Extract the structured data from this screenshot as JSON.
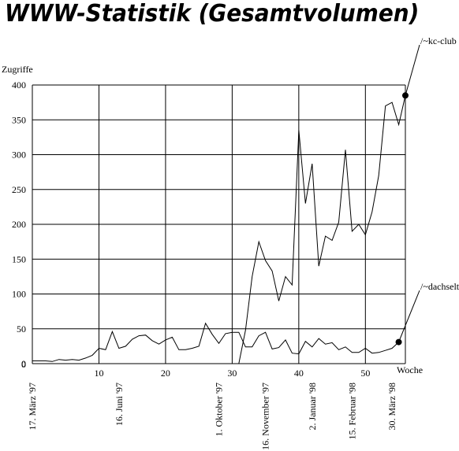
{
  "chart_data": {
    "type": "line",
    "title": "WWW-Statistik (Gesamtvolumen)",
    "ylabel": "Zugriffe",
    "xlabel": "Woche",
    "ylim": [
      0,
      400
    ],
    "xlim": [
      0,
      56
    ],
    "yticks": [
      0,
      50,
      100,
      150,
      200,
      250,
      300,
      350,
      400
    ],
    "xticks": [
      10,
      20,
      30,
      40,
      50
    ],
    "xgridlines": [
      10,
      20,
      30,
      40,
      50
    ],
    "grid": true,
    "date_labels": [
      {
        "x": 0,
        "label": "17. März '97"
      },
      {
        "x": 13,
        "label": "16. Juni '97"
      },
      {
        "x": 28,
        "label": "1. Oktober '97"
      },
      {
        "x": 35,
        "label": "16. November '97"
      },
      {
        "x": 42,
        "label": "2. Januar '98"
      },
      {
        "x": 48,
        "label": "15. Februar '98"
      },
      {
        "x": 54,
        "label": "30. März '98"
      }
    ],
    "series": [
      {
        "name": "/~kc-club",
        "color": "#000000",
        "start_x": 31,
        "values": [
          0,
          48,
          125,
          175,
          148,
          133,
          90,
          125,
          113,
          335,
          230,
          287,
          140,
          183,
          177,
          203,
          307,
          190,
          200,
          185,
          218,
          270,
          370,
          375,
          343,
          385
        ],
        "end_marker": true
      },
      {
        "name": "/~dachselt",
        "color": "#000000",
        "start_x": 0,
        "values": [
          4,
          4,
          4,
          3,
          6,
          5,
          6,
          5,
          8,
          12,
          22,
          20,
          46,
          22,
          25,
          35,
          40,
          41,
          33,
          28,
          34,
          38,
          20,
          20,
          22,
          25,
          58,
          42,
          29,
          43,
          45,
          45,
          24,
          24,
          40,
          45,
          21,
          23,
          34,
          15,
          14,
          32,
          24,
          36,
          28,
          30,
          20,
          24,
          16,
          16,
          22,
          15,
          16,
          19,
          22,
          31
        ],
        "end_marker": true
      }
    ]
  }
}
